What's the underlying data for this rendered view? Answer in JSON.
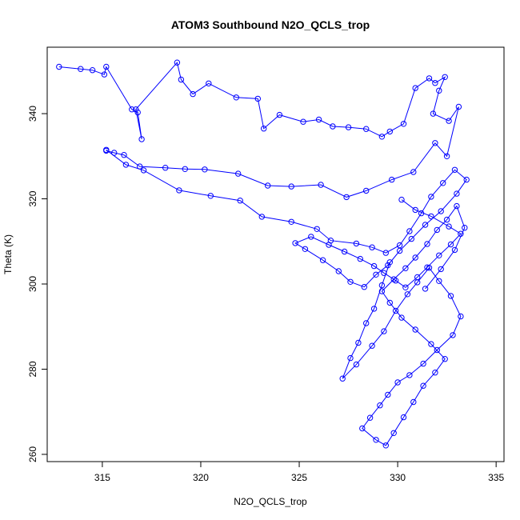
{
  "chart_data": {
    "type": "line",
    "title": "ATOM3 Southbound N2O_QCLS_trop",
    "xlabel": "N2O_QCLS_trop",
    "ylabel": "Theta (K)",
    "xlim": [
      312.2,
      335.4
    ],
    "ylim": [
      258.3,
      355.6
    ],
    "x_ticks": [
      315,
      320,
      325,
      330,
      335
    ],
    "y_ticks": [
      260,
      280,
      300,
      320,
      340
    ],
    "grid": false,
    "legend": "none",
    "series_color": "#0000ff",
    "marker": "open-circle",
    "series": [
      {
        "x": [
          312.8,
          313.9,
          314.5,
          315.1,
          315.2,
          316.5,
          316.8,
          317.0,
          316.7,
          318.8,
          319.0,
          319.6,
          320.4,
          321.8,
          322.9,
          323.2,
          324.0,
          325.2,
          326.0,
          326.7,
          327.5,
          328.4,
          329.2,
          329.6,
          330.3,
          330.9,
          331.6,
          331.9,
          332.4,
          332.1,
          331.8,
          332.6,
          333.1,
          332.5,
          331.9,
          330.8,
          329.7,
          328.4,
          327.4,
          326.1,
          324.6,
          323.4,
          321.9,
          320.2,
          319.2,
          318.2,
          316.9,
          316.1,
          315.6,
          315.2
        ],
        "y": [
          351.0,
          350.5,
          350.2,
          349.2,
          351.0,
          341.0,
          340.3,
          334.0,
          341.0,
          352.0,
          348.0,
          344.6,
          347.1,
          343.8,
          343.5,
          336.5,
          339.7,
          338.1,
          338.6,
          337.0,
          336.8,
          336.4,
          334.6,
          335.8,
          337.6,
          346.0,
          348.3,
          347.2,
          348.6,
          345.4,
          340.0,
          338.3,
          341.6,
          330.0,
          333.1,
          326.3,
          324.5,
          321.9,
          320.4,
          323.3,
          322.9,
          323.1,
          325.9,
          326.9,
          327.0,
          327.3,
          327.6,
          330.3,
          330.8,
          331.3
        ]
      },
      {
        "x": [
          315.2,
          316.2,
          317.1,
          318.9,
          320.5,
          322.0,
          323.1,
          324.6,
          325.9,
          326.6,
          327.9,
          328.7,
          329.4,
          330.1,
          330.6,
          331.2,
          331.7,
          332.3,
          332.9,
          333.5,
          333.0,
          332.2,
          331.4,
          330.7,
          330.1,
          329.5,
          328.9,
          328.3,
          327.6,
          327.0,
          326.2,
          325.3,
          324.8,
          325.6,
          326.5,
          327.3,
          328.1,
          328.8,
          329.3,
          329.9,
          330.4,
          331.0,
          331.5,
          332.1,
          332.7,
          333.2,
          332.6,
          331.7,
          330.9,
          330.2
        ],
        "y": [
          331.5,
          328.0,
          326.7,
          322.0,
          320.7,
          319.6,
          315.8,
          314.6,
          312.9,
          310.2,
          309.5,
          308.6,
          307.3,
          309.1,
          312.4,
          316.6,
          320.5,
          323.7,
          326.8,
          324.5,
          321.2,
          317.1,
          313.9,
          310.6,
          307.8,
          304.4,
          302.2,
          299.3,
          300.5,
          303.0,
          305.6,
          308.2,
          309.6,
          311.1,
          309.2,
          307.6,
          305.9,
          304.2,
          302.6,
          300.8,
          299.2,
          301.6,
          303.9,
          306.7,
          309.3,
          311.8,
          313.5,
          315.9,
          317.4,
          319.8
        ]
      },
      {
        "x": [
          329.6,
          329.2,
          328.8,
          328.4,
          328.0,
          327.6,
          327.2,
          327.9,
          328.7,
          329.3,
          329.9,
          330.5,
          331.0,
          331.6,
          332.1,
          332.7,
          333.2,
          332.8,
          332.0,
          331.3,
          330.6,
          330.0,
          329.5,
          329.1,
          328.6,
          328.2,
          328.9,
          329.4,
          329.8,
          330.3,
          330.8,
          331.3,
          331.9,
          332.4,
          331.7,
          330.9,
          330.2,
          329.6,
          329.2,
          329.8,
          330.4,
          330.9,
          331.5,
          332.0,
          332.5,
          333.0,
          333.4,
          332.9,
          332.2,
          331.4
        ],
        "y": [
          305.1,
          299.7,
          294.2,
          290.8,
          286.2,
          282.6,
          277.8,
          281.1,
          285.5,
          288.9,
          293.7,
          297.6,
          300.4,
          303.8,
          300.7,
          297.2,
          292.4,
          288.0,
          284.5,
          281.3,
          278.6,
          276.9,
          274.0,
          271.5,
          268.6,
          266.1,
          263.4,
          262.1,
          265.0,
          268.7,
          272.3,
          276.1,
          279.2,
          282.4,
          285.9,
          289.3,
          292.1,
          295.6,
          298.3,
          301.1,
          303.7,
          306.2,
          309.4,
          312.7,
          315.1,
          318.3,
          313.2,
          308.0,
          303.5,
          298.9
        ]
      }
    ]
  }
}
